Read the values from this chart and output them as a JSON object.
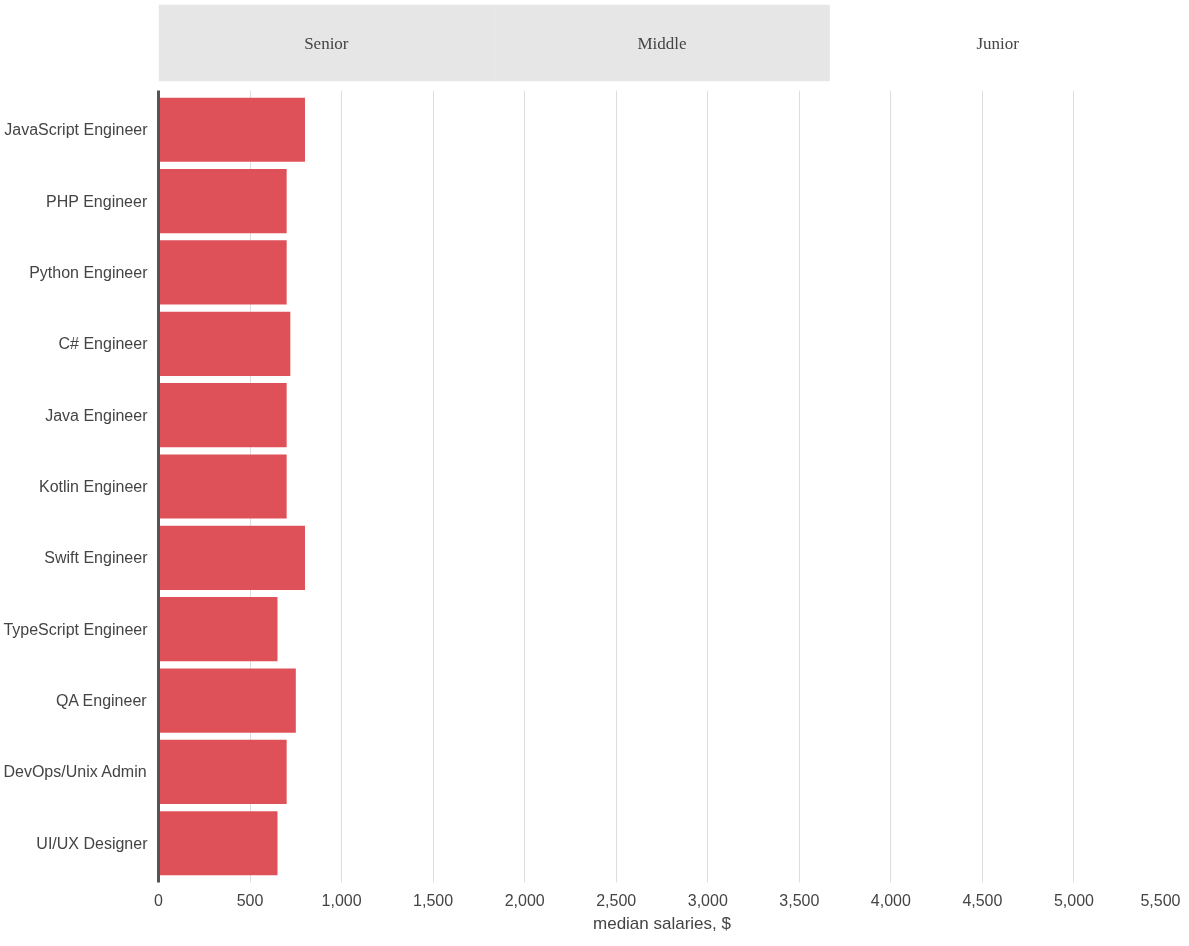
{
  "chart_data": {
    "type": "bar",
    "orientation": "horizontal",
    "categories": [
      "JavaScript Engineer",
      "PHP Engineer",
      "Python Engineer",
      "C# Engineer",
      "Java Engineer",
      "Kotlin Engineer",
      "Swift Engineer",
      "TypeScript Engineer",
      "QA Engineer",
      "DevOps/Unix Admin",
      "UI/UX Designer"
    ],
    "values": [
      800,
      700,
      700,
      720,
      700,
      700,
      800,
      650,
      750,
      700,
      650
    ],
    "color": "#df5158",
    "xlabel": "median salaries, $",
    "xlim": [
      0,
      5500
    ],
    "xticks": [
      0,
      500,
      {
        "value": 1000,
        "label": "1,000"
      },
      {
        "value": 1500,
        "label": "1,500"
      },
      {
        "value": 2000,
        "label": "2,000"
      },
      {
        "value": 2500,
        "label": "2,500"
      },
      {
        "value": 3000,
        "label": "3,000"
      },
      {
        "value": 3500,
        "label": "3,500"
      },
      {
        "value": 4000,
        "label": "4,000"
      },
      {
        "value": 4500,
        "label": "4,500"
      },
      {
        "value": 5000,
        "label": "5,000"
      },
      {
        "value": 5500,
        "label": "5,500"
      }
    ],
    "grid": "x",
    "annotations": [
      "Senior",
      "Middle",
      "Junior"
    ]
  }
}
